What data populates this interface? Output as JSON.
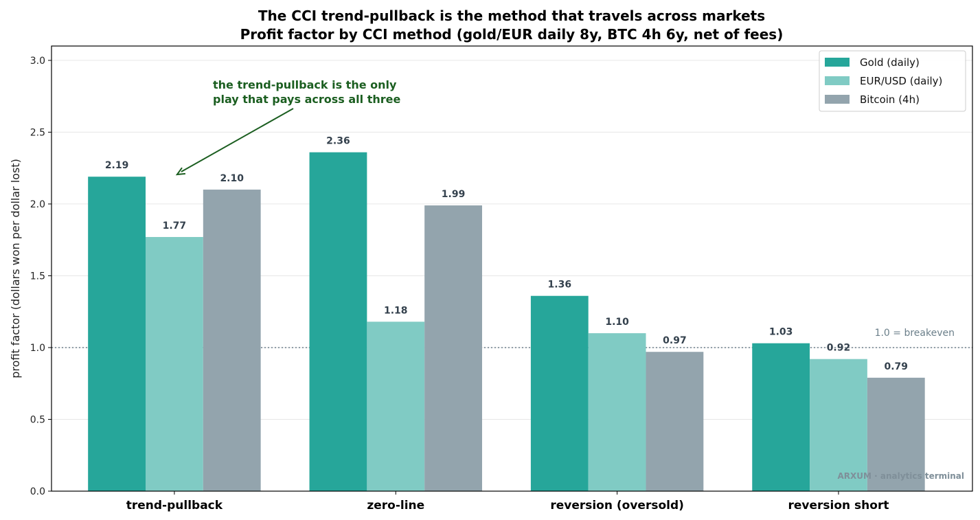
{
  "chart_data": {
    "type": "bar",
    "title": "The CCI trend-pullback is the method that travels across markets",
    "subtitle": "Profit factor by CCI method (gold/EUR daily 8y, BTC 4h 6y, net of fees)",
    "ylabel": "profit factor (dollars won per dollar lost)",
    "xlabel": "",
    "ylim": [
      0,
      3.1
    ],
    "yticks": [
      "0.0",
      "0.5",
      "1.0",
      "1.5",
      "2.0",
      "2.5",
      "3.0"
    ],
    "grid": "horizontal",
    "legend_position": "top-right",
    "categories": [
      "trend-pullback",
      "zero-line",
      "reversion (oversold)",
      "reversion short"
    ],
    "series": [
      {
        "name": "Gold (daily)",
        "color": "#26a69a",
        "values": [
          2.19,
          2.36,
          1.36,
          1.03
        ]
      },
      {
        "name": "EUR/USD (daily)",
        "color": "#80cbc4",
        "values": [
          1.77,
          1.18,
          1.1,
          0.92
        ]
      },
      {
        "name": "Bitcoin (4h)",
        "color": "#93a4ad",
        "values": [
          2.1,
          1.99,
          0.97,
          0.79
        ]
      }
    ],
    "reference_line": {
      "value": 1.0,
      "label": "1.0 = breakeven"
    },
    "annotation": {
      "lines": [
        "the trend-pullback is the only",
        "play that pays across all three"
      ],
      "points_to_category": "trend-pullback",
      "color": "#1b5e20"
    },
    "watermark": "ARXUM · analytics terminal"
  }
}
